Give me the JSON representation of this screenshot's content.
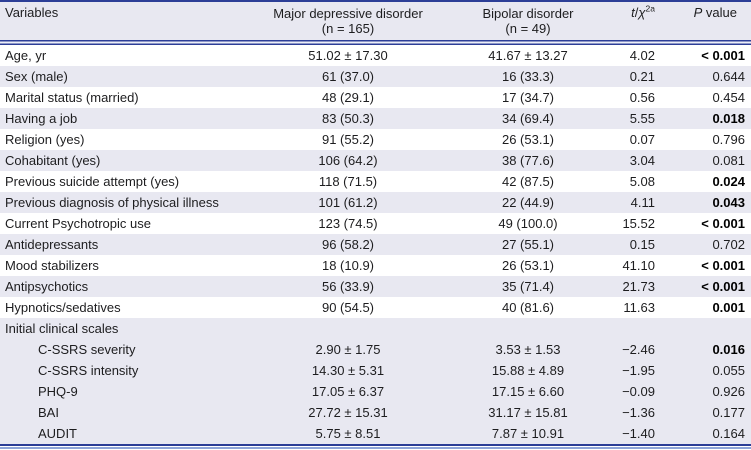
{
  "colors": {
    "rule_navy": "#2c3e97",
    "rule_light_blue": "#8ea5d8",
    "stripe_lavender": "#e8e8f1",
    "text": "#1d1d1f"
  },
  "header": {
    "variables": "Variables",
    "group1_name": "Major depressive disorder",
    "group1_n": "(n = 165)",
    "group2_name": "Bipolar disorder",
    "group2_n": "(n = 49)",
    "stat_t": "t",
    "stat_slash": "/",
    "stat_chi": "χ",
    "stat_sup": "2a",
    "p_italic": "P",
    "p_rest": " value"
  },
  "table": {
    "rows": [
      {
        "label": "Age, yr",
        "group1": "51.02 ± 17.30",
        "group2": "41.67 ± 13.27",
        "stat": "4.02",
        "p": "< 0.001",
        "p_bold": true,
        "shaded": false,
        "indent": false
      },
      {
        "label": "Sex (male)",
        "group1": "61 (37.0)",
        "group2": "16 (33.3)",
        "stat": "0.21",
        "p": "0.644",
        "p_bold": false,
        "shaded": true,
        "indent": false
      },
      {
        "label": "Marital status (married)",
        "group1": "48 (29.1)",
        "group2": "17 (34.7)",
        "stat": "0.56",
        "p": "0.454",
        "p_bold": false,
        "shaded": false,
        "indent": false
      },
      {
        "label": "Having a job",
        "group1": "83 (50.3)",
        "group2": "34 (69.4)",
        "stat": "5.55",
        "p": "0.018",
        "p_bold": true,
        "shaded": true,
        "indent": false
      },
      {
        "label": "Religion (yes)",
        "group1": "91 (55.2)",
        "group2": "26 (53.1)",
        "stat": "0.07",
        "p": "0.796",
        "p_bold": false,
        "shaded": false,
        "indent": false
      },
      {
        "label": "Cohabitant (yes)",
        "group1": "106 (64.2)",
        "group2": "38 (77.6)",
        "stat": "3.04",
        "p": "0.081",
        "p_bold": false,
        "shaded": true,
        "indent": false
      },
      {
        "label": "Previous suicide attempt (yes)",
        "group1": "118 (71.5)",
        "group2": "42 (87.5)",
        "stat": "5.08",
        "p": "0.024",
        "p_bold": true,
        "shaded": false,
        "indent": false
      },
      {
        "label": "Previous diagnosis of physical illness",
        "group1": "101 (61.2)",
        "group2": "22 (44.9)",
        "stat": "4.11",
        "p": "0.043",
        "p_bold": true,
        "shaded": true,
        "indent": false
      },
      {
        "label": "Current Psychotropic use",
        "group1": "123 (74.5)",
        "group2": "49 (100.0)",
        "stat": "15.52",
        "p": "< 0.001",
        "p_bold": true,
        "shaded": false,
        "indent": false
      },
      {
        "label": "Antidepressants",
        "group1": "96 (58.2)",
        "group2": "27 (55.1)",
        "stat": "0.15",
        "p": "0.702",
        "p_bold": false,
        "shaded": true,
        "indent": false
      },
      {
        "label": "Mood stabilizers",
        "group1": "18 (10.9)",
        "group2": "26 (53.1)",
        "stat": "41.10",
        "p": "< 0.001",
        "p_bold": true,
        "shaded": false,
        "indent": false
      },
      {
        "label": "Antipsychotics",
        "group1": "56 (33.9)",
        "group2": "35 (71.4)",
        "stat": "21.73",
        "p": "< 0.001",
        "p_bold": true,
        "shaded": true,
        "indent": false
      },
      {
        "label": "Hypnotics/sedatives",
        "group1": "90 (54.5)",
        "group2": "40 (81.6)",
        "stat": "11.63",
        "p": "0.001",
        "p_bold": true,
        "shaded": false,
        "indent": false
      },
      {
        "label": "Initial clinical scales",
        "group1": "",
        "group2": "",
        "stat": "",
        "p": "",
        "p_bold": false,
        "shaded": true,
        "indent": false
      },
      {
        "label": "C-SSRS severity",
        "group1": "2.90 ± 1.75",
        "group2": "3.53 ± 1.53",
        "stat": "−2.46",
        "p": "0.016",
        "p_bold": true,
        "shaded": true,
        "indent": true
      },
      {
        "label": "C-SSRS intensity",
        "group1": "14.30 ± 5.31",
        "group2": "15.88 ± 4.89",
        "stat": "−1.95",
        "p": "0.055",
        "p_bold": false,
        "shaded": true,
        "indent": true
      },
      {
        "label": "PHQ-9",
        "group1": "17.05 ± 6.37",
        "group2": "17.15 ± 6.60",
        "stat": "−0.09",
        "p": "0.926",
        "p_bold": false,
        "shaded": true,
        "indent": true
      },
      {
        "label": "BAI",
        "group1": "27.72 ± 15.31",
        "group2": "31.17 ± 15.81",
        "stat": "−1.36",
        "p": "0.177",
        "p_bold": false,
        "shaded": true,
        "indent": true
      },
      {
        "label": "AUDIT",
        "group1": "5.75 ± 8.51",
        "group2": "7.87 ± 10.91",
        "stat": "−1.40",
        "p": "0.164",
        "p_bold": false,
        "shaded": true,
        "indent": true
      }
    ]
  }
}
